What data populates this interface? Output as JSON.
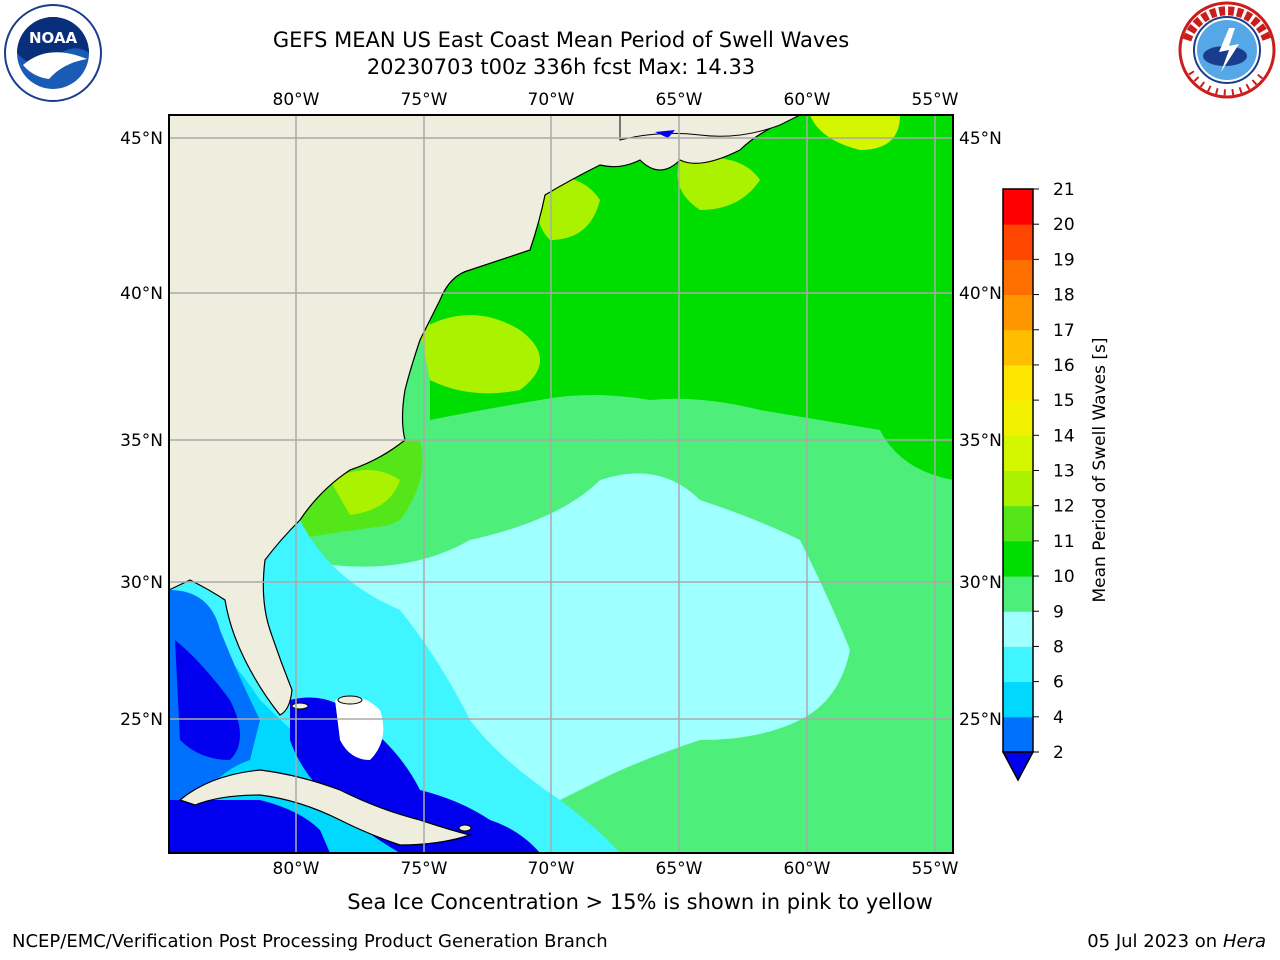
{
  "header": {
    "title_line1": "GEFS MEAN US East Coast Mean Period of Swell Waves",
    "title_line2": "20230703 t00z 336h fcst   Max: 14.33"
  },
  "logos": {
    "left_logo_text": "NOAA",
    "left_logo_ring_text": "NATIONAL OCEANIC AND ATMOSPHERIC ADMINISTRATION · U.S. DEPARTMENT OF COMMERCE",
    "right_logo_ring_text": "NATIONAL WEATHER SERVICE"
  },
  "map": {
    "lon_labels": [
      "80°W",
      "75°W",
      "70°W",
      "65°W",
      "60°W",
      "55°W"
    ],
    "lat_labels": [
      "45°N",
      "40°N",
      "35°N",
      "30°N",
      "25°N"
    ],
    "land_color": "#efedde",
    "gridline_color": "#aaaaaa"
  },
  "colorbar": {
    "label": "Mean Period of Swell Waves [s]",
    "ticks": [
      "2",
      "4",
      "6",
      "8",
      "9",
      "10",
      "11",
      "12",
      "13",
      "14",
      "15",
      "16",
      "17",
      "18",
      "19",
      "20",
      "21"
    ],
    "bands": [
      {
        "from": 2,
        "to": 4,
        "color": "#0070ff"
      },
      {
        "from": 4,
        "to": 6,
        "color": "#00d8ff"
      },
      {
        "from": 6,
        "to": 8,
        "color": "#3ff5ff"
      },
      {
        "from": 8,
        "to": 9,
        "color": "#a0ffff"
      },
      {
        "from": 9,
        "to": 10,
        "color": "#4dee7a"
      },
      {
        "from": 10,
        "to": 11,
        "color": "#00dd00"
      },
      {
        "from": 11,
        "to": 12,
        "color": "#55e61a"
      },
      {
        "from": 12,
        "to": 13,
        "color": "#aaf200"
      },
      {
        "from": 13,
        "to": 14,
        "color": "#d4f700"
      },
      {
        "from": 14,
        "to": 15,
        "color": "#f2f200"
      },
      {
        "from": 15,
        "to": 16,
        "color": "#ffe600"
      },
      {
        "from": 16,
        "to": 17,
        "color": "#ffbe00"
      },
      {
        "from": 17,
        "to": 18,
        "color": "#ff9600"
      },
      {
        "from": 18,
        "to": 19,
        "color": "#ff6e00"
      },
      {
        "from": 19,
        "to": 20,
        "color": "#ff4600"
      },
      {
        "from": 20,
        "to": 21,
        "color": "#ff0000"
      }
    ],
    "under_color": "#0000ee"
  },
  "note": "Sea Ice Concentration > 15% is shown in pink to yellow",
  "footer": {
    "left": "NCEP/EMC/Verification Post Processing Product Generation Branch",
    "right_date": "05 Jul 2023 on ",
    "right_machine": "Hera"
  }
}
